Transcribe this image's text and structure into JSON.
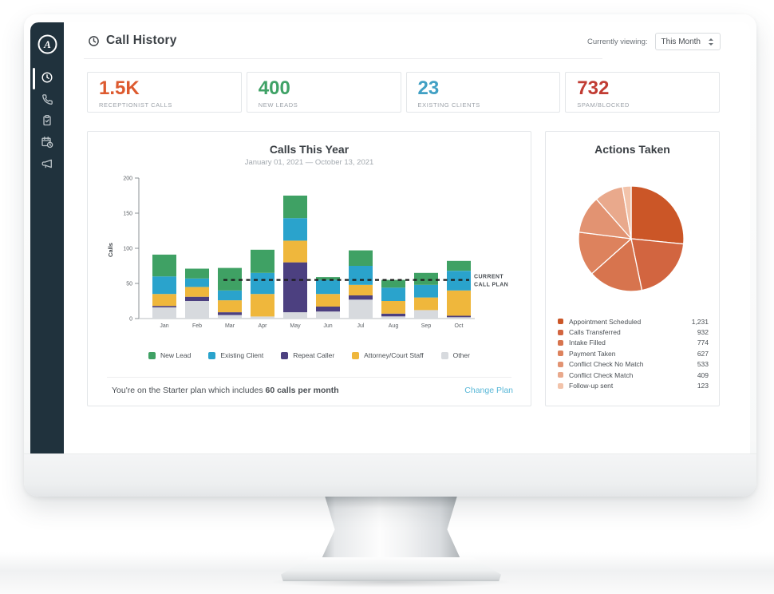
{
  "colors": {
    "sidebar_bg": "#20323d",
    "link": "#58b7d7",
    "reference_line": "#1c1c1c"
  },
  "sidebar": {
    "logo_icon": "brand-logo-icon",
    "items": [
      {
        "icon": "clock-icon",
        "active": true
      },
      {
        "icon": "phone-icon",
        "active": false
      },
      {
        "icon": "clipboard-check-icon",
        "active": false
      },
      {
        "icon": "calendar-clock-icon",
        "active": false
      },
      {
        "icon": "megaphone-icon",
        "active": false
      }
    ]
  },
  "header": {
    "title": "Call History",
    "title_icon": "clock-icon",
    "viewing_label": "Currently viewing:",
    "period_select": "This Month"
  },
  "stats": [
    {
      "value": "1.5K",
      "label": "RECEPTIONIST CALLS",
      "color": "#dd5a2f"
    },
    {
      "value": "400",
      "label": "NEW LEADS",
      "color": "#3fa266"
    },
    {
      "value": "23",
      "label": "EXISTING CLIENTS",
      "color": "#41a0c4"
    },
    {
      "value": "732",
      "label": "SPAM/BLOCKED",
      "color": "#c13c33"
    }
  ],
  "chart_data": [
    {
      "type": "bar",
      "stacked": true,
      "title": "Calls This Year",
      "subtitle": "January 01, 2021 — October 13, 2021",
      "xlabel": "",
      "ylabel": "Calls",
      "ylim": [
        0,
        200
      ],
      "yticks": [
        0,
        50,
        100,
        150,
        200
      ],
      "grid": false,
      "legend_position": "bottom",
      "categories": [
        "Jan",
        "Feb",
        "Mar",
        "Apr",
        "May",
        "Jun",
        "Jul",
        "Aug",
        "Sep",
        "Oct"
      ],
      "stack_order_bottom_to_top": [
        "Other",
        "Repeat Caller",
        "Attorney/Court Staff",
        "Existing Client",
        "New Lead"
      ],
      "series": [
        {
          "name": "New Lead",
          "color": "#3fa164",
          "values": [
            31,
            14,
            32,
            33,
            32,
            4,
            22,
            11,
            17,
            14
          ]
        },
        {
          "name": "Existing Client",
          "color": "#2aa3cc",
          "values": [
            25,
            12,
            14,
            30,
            32,
            20,
            27,
            19,
            18,
            28
          ]
        },
        {
          "name": "Repeat Caller",
          "color": "#4c4080",
          "values": [
            2,
            6,
            4,
            0,
            71,
            7,
            6,
            4,
            0,
            2
          ]
        },
        {
          "name": "Attorney/Court Staff",
          "color": "#efb73c",
          "values": [
            17,
            14,
            17,
            32,
            31,
            18,
            15,
            18,
            18,
            36
          ]
        },
        {
          "name": "Other",
          "color": "#d7dade",
          "values": [
            16,
            25,
            5,
            3,
            9,
            10,
            27,
            3,
            12,
            2
          ]
        }
      ],
      "reference_line": {
        "value": 55,
        "label": "CURRENT CALL PLAN",
        "style": "dashed"
      }
    },
    {
      "type": "pie",
      "title": "Actions Taken",
      "start_angle_deg": 0,
      "direction": "clockwise",
      "legend_position": "bottom",
      "slices": [
        {
          "label": "Appointment Scheduled",
          "value": 1231,
          "display": "1,231",
          "color": "#cb5627"
        },
        {
          "label": "Calls Transferred",
          "value": 932,
          "display": "932",
          "color": "#d26540"
        },
        {
          "label": "Intake Filled",
          "value": 774,
          "display": "774",
          "color": "#d7744e"
        },
        {
          "label": "Payment Taken",
          "value": 627,
          "display": "627",
          "color": "#dd825d"
        },
        {
          "label": "Conflict Check No Match",
          "value": 533,
          "display": "533",
          "color": "#e29372"
        },
        {
          "label": "Conflict Check Match",
          "value": 409,
          "display": "409",
          "color": "#e9a98c"
        },
        {
          "label": "Follow-up sent",
          "value": 123,
          "display": "123",
          "color": "#f2c3aa"
        }
      ]
    }
  ],
  "plan_footer": {
    "text_regular": "You're on the Starter plan which includes ",
    "text_bold": "60 calls per month",
    "link": "Change Plan"
  }
}
